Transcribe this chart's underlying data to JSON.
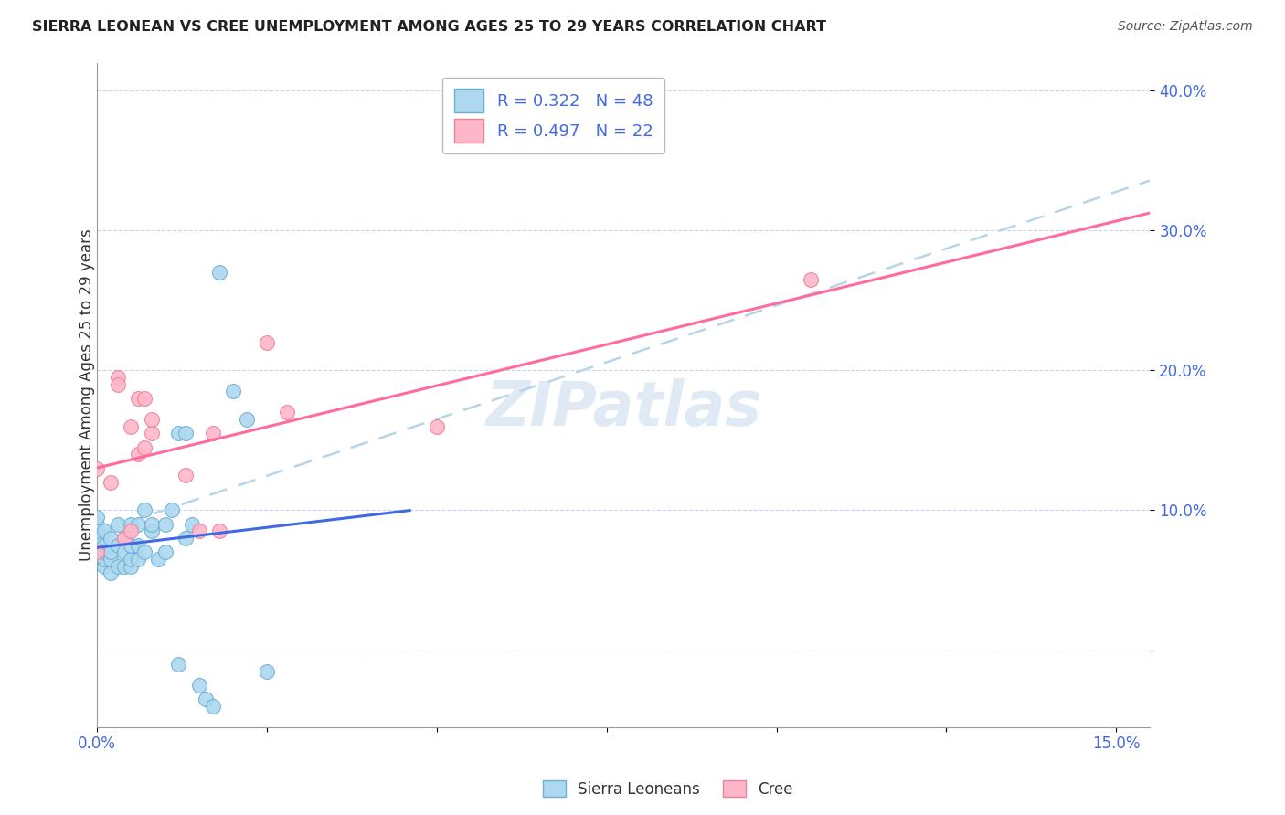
{
  "title": "SIERRA LEONEAN VS CREE UNEMPLOYMENT AMONG AGES 25 TO 29 YEARS CORRELATION CHART",
  "source": "Source: ZipAtlas.com",
  "ylabel": "Unemployment Among Ages 25 to 29 years",
  "xlim": [
    0.0,
    0.155
  ],
  "ylim": [
    -0.055,
    0.42
  ],
  "xtick_positions": [
    0.0,
    0.025,
    0.05,
    0.075,
    0.1,
    0.125,
    0.15
  ],
  "xtick_labels": [
    "0.0%",
    "",
    "",
    "",
    "",
    "",
    "15.0%"
  ],
  "ytick_positions": [
    0.0,
    0.1,
    0.2,
    0.3,
    0.4
  ],
  "ytick_labels": [
    "",
    "10.0%",
    "20.0%",
    "30.0%",
    "40.0%"
  ],
  "sl_fill_color": "#add8f0",
  "sl_edge_color": "#6baed6",
  "cree_fill_color": "#ffb6c8",
  "cree_edge_color": "#e8829a",
  "sl_line_color": "#4169E1",
  "cree_line_color": "#FF6B9E",
  "dash_line_color": "#b8d4e8",
  "sl_R": 0.322,
  "sl_N": 48,
  "cree_R": 0.497,
  "cree_N": 22,
  "watermark": "ZIPatlas",
  "sierra_leoneans_x": [
    0.0,
    0.0,
    0.0,
    0.0,
    0.0,
    0.0,
    0.001,
    0.001,
    0.001,
    0.001,
    0.001,
    0.002,
    0.002,
    0.002,
    0.002,
    0.003,
    0.003,
    0.003,
    0.004,
    0.004,
    0.004,
    0.005,
    0.005,
    0.005,
    0.005,
    0.006,
    0.006,
    0.006,
    0.007,
    0.007,
    0.008,
    0.008,
    0.009,
    0.01,
    0.01,
    0.011,
    0.012,
    0.012,
    0.013,
    0.013,
    0.014,
    0.015,
    0.016,
    0.017,
    0.018,
    0.02,
    0.022,
    0.025
  ],
  "sierra_leoneans_y": [
    0.07,
    0.07,
    0.08,
    0.085,
    0.09,
    0.095,
    0.06,
    0.065,
    0.07,
    0.075,
    0.085,
    0.055,
    0.065,
    0.07,
    0.08,
    0.06,
    0.075,
    0.09,
    0.06,
    0.07,
    0.08,
    0.06,
    0.065,
    0.075,
    0.09,
    0.065,
    0.075,
    0.09,
    0.07,
    0.1,
    0.085,
    0.09,
    0.065,
    0.07,
    0.09,
    0.1,
    -0.01,
    0.155,
    0.08,
    0.155,
    0.09,
    -0.025,
    -0.035,
    -0.04,
    0.27,
    0.185,
    0.165,
    -0.015
  ],
  "cree_x": [
    0.0,
    0.0,
    0.002,
    0.003,
    0.003,
    0.004,
    0.005,
    0.005,
    0.006,
    0.006,
    0.007,
    0.007,
    0.008,
    0.008,
    0.013,
    0.015,
    0.017,
    0.018,
    0.025,
    0.028,
    0.05,
    0.105
  ],
  "cree_y": [
    0.07,
    0.13,
    0.12,
    0.195,
    0.19,
    0.08,
    0.085,
    0.16,
    0.14,
    0.18,
    0.145,
    0.18,
    0.155,
    0.165,
    0.125,
    0.085,
    0.155,
    0.085,
    0.22,
    0.17,
    0.16,
    0.265
  ]
}
